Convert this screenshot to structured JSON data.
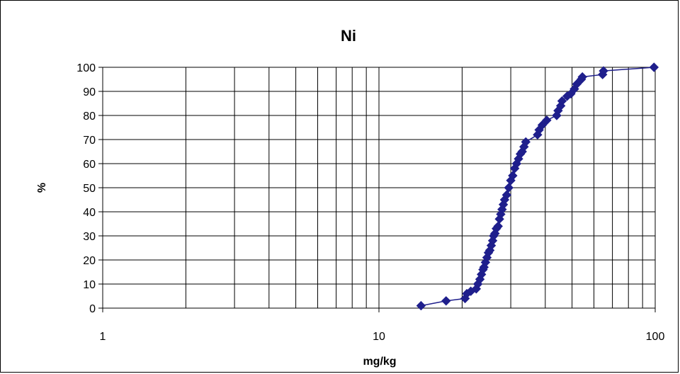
{
  "chart_data": {
    "type": "scatter",
    "title": "Ni",
    "xlabel": "mg/kg",
    "ylabel": "%",
    "x_scale": "log",
    "xlim": [
      1,
      100
    ],
    "ylim": [
      0,
      100
    ],
    "x_ticks": [
      "1",
      "10",
      "100"
    ],
    "y_ticks": [
      "0",
      "10",
      "20",
      "30",
      "40",
      "50",
      "60",
      "70",
      "80",
      "90",
      "100"
    ],
    "grid": true,
    "legend": "none",
    "marker": "diamond",
    "color": "#1F1F8C",
    "series": [
      {
        "values": [
          [
            14.2,
            1
          ],
          [
            17.5,
            3
          ],
          [
            20.5,
            4
          ],
          [
            20.8,
            6
          ],
          [
            21.5,
            7
          ],
          [
            22.5,
            8
          ],
          [
            22.8,
            10
          ],
          [
            23.2,
            12
          ],
          [
            23.5,
            14
          ],
          [
            23.8,
            16
          ],
          [
            24.0,
            17
          ],
          [
            24.3,
            19
          ],
          [
            24.6,
            21
          ],
          [
            24.9,
            23
          ],
          [
            25.2,
            24
          ],
          [
            25.5,
            26
          ],
          [
            25.8,
            28
          ],
          [
            26.0,
            30
          ],
          [
            26.3,
            31
          ],
          [
            26.6,
            33
          ],
          [
            27.0,
            34
          ],
          [
            27.3,
            37
          ],
          [
            27.6,
            39
          ],
          [
            27.9,
            41
          ],
          [
            28.2,
            43
          ],
          [
            28.5,
            45
          ],
          [
            29.0,
            47
          ],
          [
            29.5,
            50
          ],
          [
            30.0,
            53
          ],
          [
            30.5,
            55
          ],
          [
            31.0,
            58
          ],
          [
            31.5,
            60
          ],
          [
            32.0,
            62
          ],
          [
            32.5,
            64
          ],
          [
            33.0,
            65
          ],
          [
            33.5,
            67
          ],
          [
            34.0,
            69
          ],
          [
            37.5,
            72
          ],
          [
            38.0,
            74
          ],
          [
            39.0,
            76
          ],
          [
            40.5,
            78
          ],
          [
            44.0,
            80
          ],
          [
            44.5,
            82
          ],
          [
            45.5,
            84
          ],
          [
            46.0,
            86
          ],
          [
            48.0,
            88
          ],
          [
            49.5,
            89
          ],
          [
            51.0,
            91
          ],
          [
            52.0,
            93
          ],
          [
            54.0,
            95
          ],
          [
            54.5,
            96
          ],
          [
            64.5,
            97
          ],
          [
            65.0,
            98.5
          ],
          [
            99.0,
            100
          ]
        ]
      }
    ]
  }
}
